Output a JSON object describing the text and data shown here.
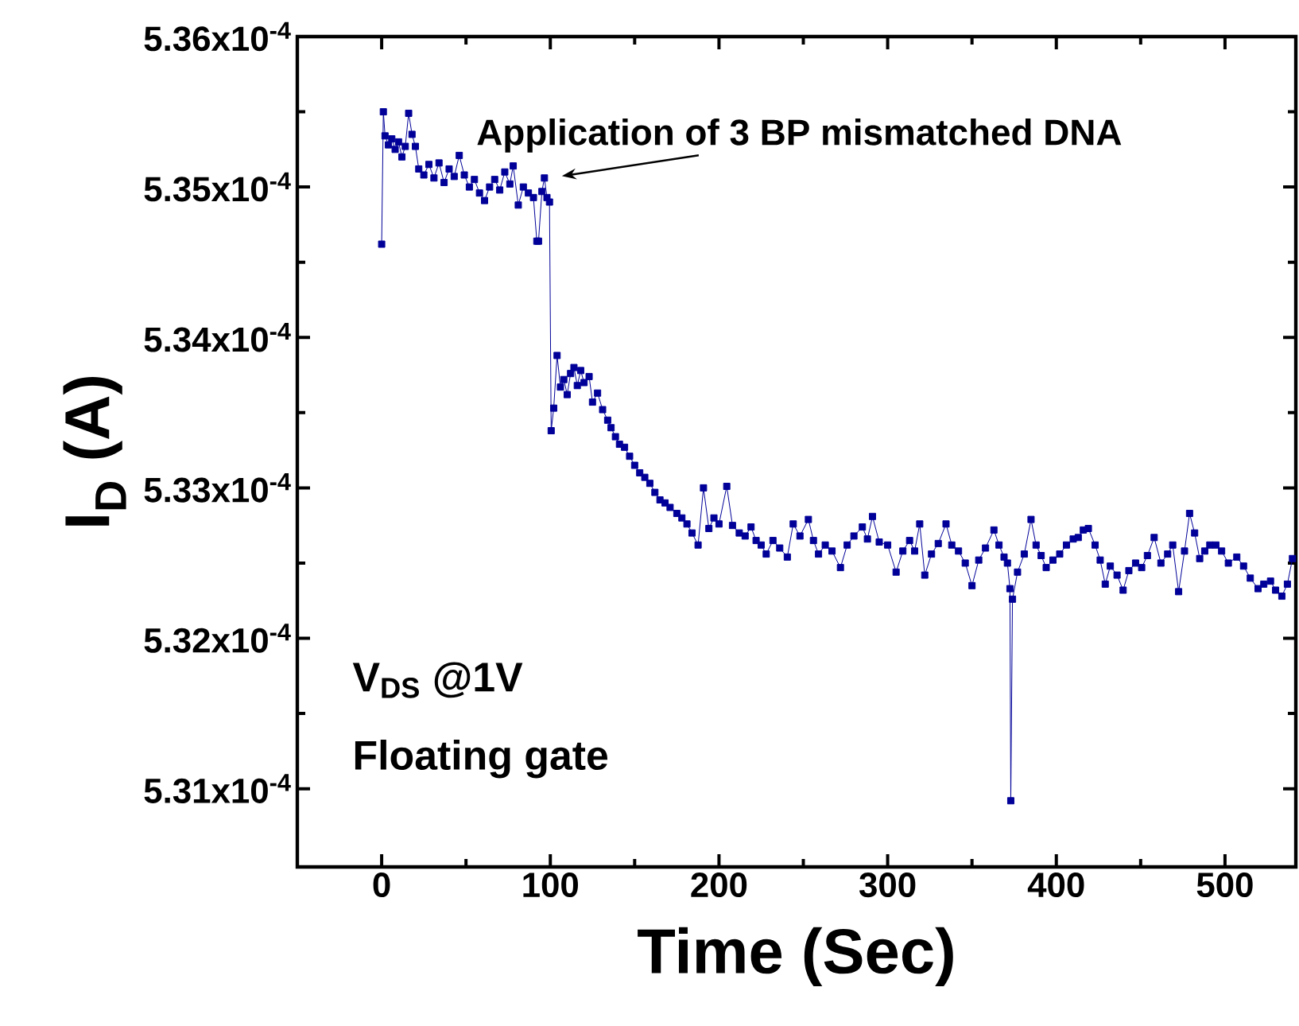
{
  "chart_data": {
    "type": "line",
    "xlabel": "Time (Sec)",
    "ylabel": "I$_{D}$ (A)",
    "x": [
      0,
      1,
      2,
      4,
      6,
      8,
      10,
      12,
      14,
      16,
      18,
      20,
      22,
      25,
      28,
      31,
      34,
      37,
      40,
      43,
      46,
      49,
      52,
      55,
      58,
      61,
      64,
      67,
      70,
      73,
      76,
      78,
      81,
      84,
      87,
      90,
      92,
      93,
      95,
      96.5,
      98,
      99.5,
      100.5,
      102,
      104,
      106,
      108,
      110,
      112,
      114,
      116,
      118,
      120,
      123,
      125,
      128,
      131,
      134,
      136,
      138.6,
      141,
      144,
      147,
      150,
      153,
      156,
      159,
      162,
      165,
      168,
      171,
      175,
      178,
      181,
      184,
      187.6,
      190.8,
      194,
      197,
      200,
      204.6,
      208,
      212,
      215.5,
      219,
      222,
      225,
      228,
      232,
      236,
      240.5,
      244,
      248,
      253,
      256,
      259,
      263,
      267,
      272,
      276,
      280,
      285,
      288,
      291,
      295,
      300,
      305,
      309,
      313,
      316,
      319,
      322,
      326,
      330,
      334.6,
      338,
      342,
      346,
      350,
      354,
      358,
      363,
      366,
      369,
      371,
      372.5,
      373,
      374,
      377,
      381,
      385,
      388,
      391,
      394,
      398,
      402,
      406,
      410,
      413,
      416,
      419,
      423,
      426,
      429,
      432,
      436,
      439.6,
      443,
      447,
      450.6,
      454,
      458,
      462,
      466,
      469,
      472.5,
      476,
      479,
      482,
      485,
      488,
      491,
      494.6,
      498,
      502,
      507,
      511,
      515,
      519.6,
      523,
      527,
      530,
      533.7,
      537,
      540
    ],
    "series": [
      {
        "color": "#000099",
        "values": [
          0.00053462,
          0.0005355,
          0.00053534,
          0.00053528,
          0.00053532,
          0.00053525,
          0.0005353,
          0.0005352,
          0.00053527,
          0.00053549,
          0.00053535,
          0.00053527,
          0.00053512,
          0.00053508,
          0.00053515,
          0.00053506,
          0.00053516,
          0.00053503,
          0.00053512,
          0.00053507,
          0.00053521,
          0.00053508,
          0.000535,
          0.00053505,
          0.00053496,
          0.00053491,
          0.000535,
          0.00053505,
          0.00053498,
          0.0005351,
          0.00053502,
          0.00053514,
          0.00053488,
          0.000535,
          0.00053496,
          0.00053493,
          0.00053464,
          0.00053464,
          0.00053497,
          0.00053506,
          0.00053493,
          0.0005349,
          0.00053338,
          0.00053353,
          0.00053388,
          0.00053367,
          0.00053372,
          0.00053362,
          0.00053376,
          0.0005338,
          0.00053368,
          0.00053378,
          0.0005337,
          0.00053374,
          0.00053357,
          0.00053363,
          0.00053352,
          0.00053345,
          0.0005334,
          0.00053334,
          0.00053329,
          0.00053327,
          0.00053321,
          0.00053315,
          0.0005331,
          0.00053307,
          0.00053303,
          0.00053297,
          0.00053292,
          0.0005329,
          0.00053287,
          0.00053283,
          0.0005328,
          0.00053276,
          0.0005327,
          0.00053262,
          0.000533,
          0.00053273,
          0.0005328,
          0.00053276,
          0.00053301,
          0.00053275,
          0.0005327,
          0.00053268,
          0.00053274,
          0.00053265,
          0.00053262,
          0.00053256,
          0.00053265,
          0.0005326,
          0.00053254,
          0.00053276,
          0.00053268,
          0.00053279,
          0.00053265,
          0.00053256,
          0.00053262,
          0.00053258,
          0.00053247,
          0.00053262,
          0.00053268,
          0.00053274,
          0.00053266,
          0.00053281,
          0.00053264,
          0.00053262,
          0.00053244,
          0.00053258,
          0.00053265,
          0.00053258,
          0.00053276,
          0.00053242,
          0.00053256,
          0.00053263,
          0.00053276,
          0.00053262,
          0.00053258,
          0.0005325,
          0.00053235,
          0.00053252,
          0.0005326,
          0.00053272,
          0.00053262,
          0.00053254,
          0.0005325,
          0.00053233,
          0.00053092,
          0.00053226,
          0.00053244,
          0.00053256,
          0.00053279,
          0.00053262,
          0.00053255,
          0.00053247,
          0.00053252,
          0.00053256,
          0.00053262,
          0.00053266,
          0.00053267,
          0.00053272,
          0.00053273,
          0.00053262,
          0.00053252,
          0.00053236,
          0.00053248,
          0.00053242,
          0.00053232,
          0.00053245,
          0.0005325,
          0.00053247,
          0.00053255,
          0.00053267,
          0.0005325,
          0.00053256,
          0.00053262,
          0.00053231,
          0.00053258,
          0.00053283,
          0.0005327,
          0.00053253,
          0.00053258,
          0.00053262,
          0.00053262,
          0.00053258,
          0.0005325,
          0.00053254,
          0.00053248,
          0.0005324,
          0.00053233,
          0.00053236,
          0.00053238,
          0.00053232,
          0.00053228,
          0.00053236,
          0.00053253
        ]
      }
    ],
    "xlim": [
      -50,
      542
    ],
    "ylim": [
      0.00053048,
      0.000536
    ],
    "xticks": [
      {
        "value": -50,
        "label": null
      },
      0,
      {
        "value": 50,
        "label": null
      },
      100,
      {
        "value": 150,
        "label": null
      },
      200,
      {
        "value": 250,
        "label": null
      },
      300,
      {
        "value": 350,
        "label": null
      },
      400,
      {
        "value": 450,
        "label": null
      },
      500
    ],
    "yticks": [
      {
        "value": 0.000531,
        "label": "5.31x10$^{-4}$"
      },
      {
        "value": 0.0005315,
        "label": null
      },
      {
        "value": 0.000532,
        "label": "5.32x10$^{-4}$"
      },
      {
        "value": 0.0005325,
        "label": null
      },
      {
        "value": 0.000533,
        "label": "5.33x10$^{-4}$"
      },
      {
        "value": 0.0005335,
        "label": null
      },
      {
        "value": 0.000534,
        "label": "5.34x10$^{-4}$"
      },
      {
        "value": 0.0005345,
        "label": null
      },
      {
        "value": 0.000535,
        "label": "5.35x10$^{-4}$"
      },
      {
        "value": 0.0005355,
        "label": null
      },
      {
        "value": 0.000536,
        "label": "5.36x10$^{-4}$"
      }
    ],
    "annotations": [
      "Application of 3 BP mismatched DNA",
      "V$_{DS}$ @1V",
      "Floating gate"
    ],
    "grid": false,
    "marker": "square",
    "line_style": "solid"
  }
}
